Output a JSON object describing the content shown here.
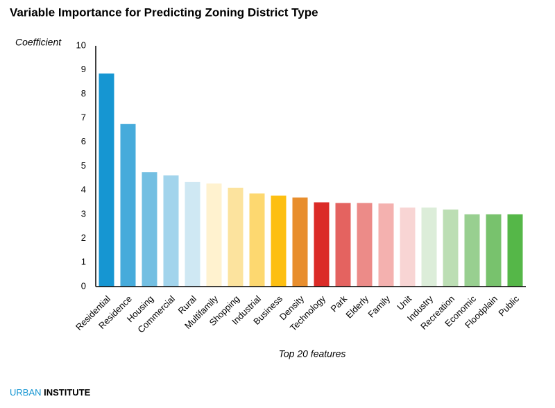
{
  "chart_data": {
    "type": "bar",
    "title": "Variable Importance for Predicting Zoning District Type",
    "y_label": "Coefficient",
    "x_label": "Top 20 features",
    "categories": [
      "Residential",
      "Residence",
      "Housing",
      "Commercial",
      "Rural",
      "Multifamily",
      "Shopping",
      "Industrial",
      "Business",
      "Density",
      "Technology",
      "Park",
      "Elderly",
      "Family",
      "Unit",
      "Industry",
      "Recreation",
      "Economic",
      "Floodplain",
      "Public"
    ],
    "values": [
      8.85,
      6.75,
      4.75,
      4.62,
      4.35,
      4.28,
      4.1,
      3.87,
      3.78,
      3.7,
      3.5,
      3.47,
      3.47,
      3.45,
      3.28,
      3.28,
      3.2,
      3.0,
      3.0,
      3.0
    ],
    "colors": [
      "#1696d2",
      "#46abdb",
      "#73bfe2",
      "#a2d4ec",
      "#cfe8f3",
      "#fff2cf",
      "#fce39e",
      "#fdd870",
      "#fdbf11",
      "#e88e2d",
      "#db2b27",
      "#e46360",
      "#ec8b88",
      "#f4b1af",
      "#f8d5d4",
      "#dcedd9",
      "#bcdeb4",
      "#98cf90",
      "#78c26d",
      "#55b748"
    ],
    "ylim": [
      0,
      10
    ],
    "yticks": [
      0,
      1,
      2,
      3,
      4,
      5,
      6,
      7,
      8,
      9,
      10
    ],
    "grid": false
  },
  "footer": {
    "brand": "URBAN",
    "name": "INSTITUTE"
  }
}
